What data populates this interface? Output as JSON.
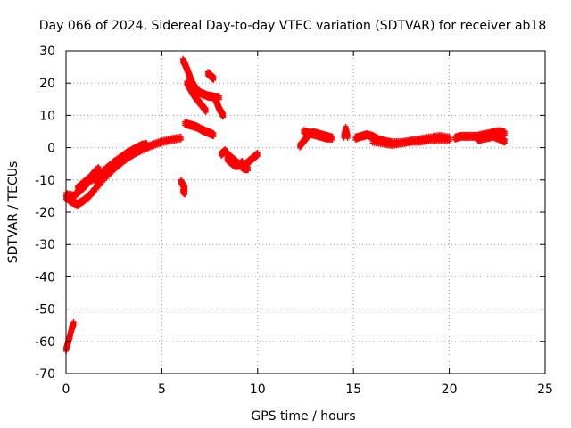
{
  "chart_data": {
    "type": "scatter",
    "title": "Day 066 of 2024, Sidereal Day-to-day VTEC variation (SDTVAR) for receiver ab18",
    "xlabel": "GPS time / hours",
    "ylabel": "SDTVAR / TECUs",
    "xlim": [
      0,
      25
    ],
    "ylim": [
      -70,
      30
    ],
    "xticks": [
      0,
      5,
      10,
      15,
      20,
      25
    ],
    "yticks": [
      -70,
      -60,
      -50,
      -40,
      -30,
      -20,
      -10,
      0,
      10,
      20,
      30
    ],
    "grid": true,
    "marker": "+",
    "series_color": "#ff0000",
    "series": [
      {
        "name": "SDTVAR",
        "segments": [
          {
            "x": [
              0.0,
              0.1,
              0.2,
              0.3,
              0.4
            ],
            "y": [
              -62.5,
              -60.5,
              -58.5,
              -56.0,
              -54.5
            ]
          },
          {
            "x": [
              0.0,
              0.3,
              0.6,
              0.9,
              1.2,
              1.5,
              2.0,
              2.5,
              3.0,
              3.5,
              4.0,
              4.5,
              5.0,
              5.5,
              6.0
            ],
            "y": [
              -15.5,
              -16.8,
              -17.5,
              -16.5,
              -15.0,
              -13.0,
              -9.5,
              -6.5,
              -4.0,
              -2.0,
              -0.5,
              0.8,
              1.8,
              2.5,
              3.0
            ]
          },
          {
            "x": [
              0.0,
              0.4,
              0.8,
              1.2,
              1.6,
              2.0,
              2.5,
              3.0,
              3.5,
              4.0
            ],
            "y": [
              -14.5,
              -15.0,
              -13.0,
              -10.5,
              -9.0,
              -7.0,
              -4.5,
              -2.5,
              -1.0,
              0.5
            ]
          },
          {
            "x": [
              0.6,
              0.9,
              1.2,
              1.5,
              1.7
            ],
            "y": [
              -12.5,
              -11.0,
              -9.5,
              -7.5,
              -6.5
            ]
          },
          {
            "x": [
              1.6,
              1.9,
              2.2,
              2.5,
              2.8
            ],
            "y": [
              -11.5,
              -9.0,
              -7.0,
              -5.5,
              -4.5
            ]
          },
          {
            "x": [
              2.8,
              3.1,
              3.4,
              3.7,
              4.0,
              4.2
            ],
            "y": [
              -3.5,
              -2.0,
              -1.0,
              0.0,
              0.8,
              1.0
            ]
          },
          {
            "x": [
              6.1,
              6.2,
              6.3,
              6.4,
              6.5,
              6.6,
              6.7,
              6.8,
              6.9,
              7.0,
              7.2,
              7.4,
              7.6,
              7.8,
              8.0
            ],
            "y": [
              27.0,
              26.0,
              24.5,
              23.0,
              21.5,
              20.0,
              19.0,
              18.0,
              17.5,
              17.0,
              16.5,
              16.0,
              15.8,
              15.6,
              15.5
            ]
          },
          {
            "x": [
              6.3,
              6.5,
              6.7,
              6.9,
              7.1,
              7.3
            ],
            "y": [
              20.0,
              18.0,
              16.0,
              14.5,
              13.0,
              11.5
            ]
          },
          {
            "x": [
              6.2,
              6.5,
              6.8,
              7.1,
              7.3,
              7.5,
              7.7
            ],
            "y": [
              7.5,
              7.0,
              6.5,
              5.5,
              5.0,
              4.5,
              4.0
            ]
          },
          {
            "x": [
              7.4,
              7.5,
              7.6,
              7.7
            ],
            "y": [
              23.0,
              22.5,
              22.0,
              21.5
            ]
          },
          {
            "x": [
              7.8,
              7.9,
              8.0,
              8.1,
              8.2
            ],
            "y": [
              15.0,
              13.5,
              12.0,
              11.0,
              10.0
            ]
          },
          {
            "x": [
              6.0,
              6.1,
              6.2
            ],
            "y": [
              -10.5,
              -11.5,
              -12.5
            ]
          },
          {
            "x": [
              6.1,
              6.2
            ],
            "y": [
              -13.5,
              -14.0
            ]
          },
          {
            "x": [
              8.1,
              8.3,
              8.5,
              8.7,
              8.9,
              9.1,
              9.3,
              9.5
            ],
            "y": [
              -2.0,
              -1.0,
              -2.5,
              -3.5,
              -4.5,
              -5.5,
              -6.5,
              -6.5
            ]
          },
          {
            "x": [
              8.4,
              8.6,
              8.8,
              9.0,
              9.2
            ],
            "y": [
              -3.5,
              -4.5,
              -5.5,
              -5.5,
              -4.5
            ]
          },
          {
            "x": [
              9.2,
              9.4,
              9.6,
              9.8,
              10.0
            ],
            "y": [
              -6.0,
              -5.0,
              -4.0,
              -3.0,
              -2.0
            ]
          },
          {
            "x": [
              12.2,
              12.4,
              12.6,
              12.8,
              13.0,
              13.3,
              13.6,
              13.9
            ],
            "y": [
              0.5,
              2.0,
              3.5,
              4.5,
              4.5,
              4.0,
              3.5,
              3.0
            ]
          },
          {
            "x": [
              12.4,
              12.7,
              13.0,
              13.3,
              13.6,
              13.9
            ],
            "y": [
              5.0,
              4.5,
              4.0,
              3.5,
              3.0,
              3.0
            ]
          },
          {
            "x": [
              14.5,
              14.6,
              14.7
            ],
            "y": [
              3.5,
              6.0,
              3.5
            ]
          },
          {
            "x": [
              15.1,
              15.4,
              15.7,
              16.0,
              16.3,
              16.6,
              17.0,
              17.5,
              18.0,
              18.5,
              19.0,
              19.5,
              20.0
            ],
            "y": [
              3.0,
              3.5,
              4.0,
              3.5,
              2.5,
              2.0,
              1.5,
              1.5,
              2.0,
              2.5,
              3.0,
              3.5,
              3.0
            ]
          },
          {
            "x": [
              16.0,
              16.5,
              17.0,
              17.5,
              18.0,
              18.5,
              19.0,
              19.5,
              20.0
            ],
            "y": [
              2.0,
              1.5,
              1.0,
              1.5,
              2.0,
              2.0,
              2.5,
              2.5,
              2.5
            ]
          },
          {
            "x": [
              20.3,
              20.6,
              21.0,
              21.4,
              21.8,
              22.2,
              22.6,
              22.9
            ],
            "y": [
              3.0,
              3.5,
              3.5,
              3.5,
              4.0,
              4.5,
              5.0,
              4.5
            ]
          },
          {
            "x": [
              21.5,
              21.9,
              22.3,
              22.7,
              22.9
            ],
            "y": [
              2.5,
              3.0,
              3.5,
              2.5,
              2.0
            ]
          }
        ]
      }
    ]
  }
}
